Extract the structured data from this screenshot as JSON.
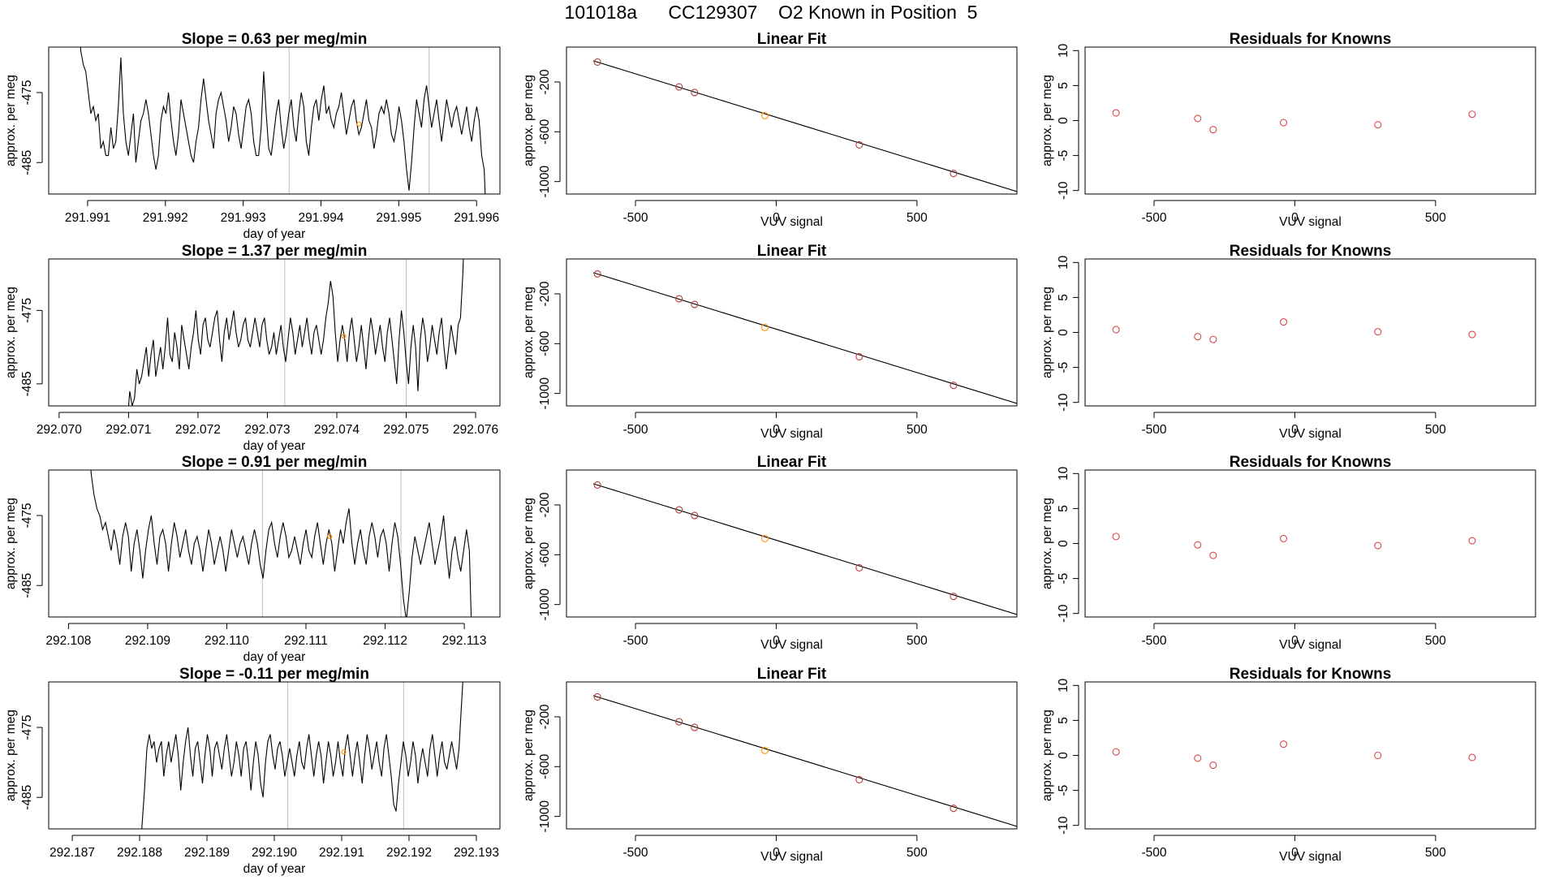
{
  "figure": {
    "title": "101018a      CC129307    O2 Known in Position  5"
  },
  "chart_data": [
    {
      "type": "line",
      "row": 1,
      "slope": "0.63",
      "title_prefix": "Slope = ",
      "title_suffix": " per meg/min",
      "xlabel": "day of year",
      "ylabel": "approx. per meg",
      "xlim": [
        291.9905,
        291.9963
      ],
      "ylim": [
        -489.5,
        -468.5
      ],
      "xticks": [
        "291.991",
        "291.992",
        "291.993",
        "291.994",
        "291.995",
        "291.996"
      ],
      "yticks": [
        "-475",
        "-485"
      ],
      "vlines": [
        291.99359,
        291.99539
      ],
      "series_x": [
        291.99088,
        291.99613
      ],
      "series_y": [
        -462,
        -469,
        -471,
        -472,
        -475,
        -478,
        -477,
        -479,
        -478,
        -483,
        -482,
        -484,
        -484,
        -480,
        -483,
        -482,
        -477,
        -470,
        -478,
        -482,
        -484,
        -481,
        -478,
        -485,
        -482,
        -479,
        -478,
        -476,
        -478,
        -481,
        -484,
        -486,
        -484,
        -479,
        -477,
        -478,
        -475,
        -479,
        -482,
        -484,
        -481,
        -476,
        -478,
        -480,
        -482,
        -484,
        -485,
        -482,
        -480,
        -476,
        -473,
        -476,
        -479,
        -481,
        -483,
        -478,
        -476,
        -475,
        -477,
        -479,
        -482,
        -480,
        -477,
        -478,
        -481,
        -483,
        -480,
        -477,
        -476,
        -478,
        -482,
        -484,
        -484,
        -480,
        -472,
        -478,
        -483,
        -484,
        -481,
        -478,
        -476,
        -480,
        -483,
        -481,
        -478,
        -476,
        -480,
        -482,
        -478,
        -475,
        -477,
        -482,
        -484,
        -480,
        -477,
        -476,
        -479,
        -476,
        -474,
        -478,
        -477,
        -479,
        -480,
        -478,
        -477,
        -475,
        -478,
        -481,
        -479,
        -477,
        -476,
        -479,
        -481,
        -480,
        -478,
        -476,
        -479,
        -480,
        -483,
        -481,
        -478,
        -477,
        -478,
        -476,
        -478,
        -481,
        -482,
        -480,
        -477,
        -479,
        -482,
        -486,
        -489,
        -485,
        -480,
        -476,
        -478,
        -480,
        -476,
        -474,
        -477,
        -480,
        -478,
        -476,
        -479,
        -482,
        -479,
        -476,
        -478,
        -480,
        -478,
        -477,
        -479,
        -481,
        -479,
        -477,
        -480,
        -482,
        -479,
        -477,
        -479,
        -484,
        -486,
        -495
      ],
      "knowns": [
        {
          "x": 291.99449,
          "y": -479.5
        }
      ]
    },
    {
      "type": "line",
      "row": 2,
      "slope": "1.37",
      "title_prefix": "Slope = ",
      "title_suffix": " per meg/min",
      "xlabel": "day of year",
      "ylabel": "approx. per meg",
      "xlim": [
        292.06985,
        292.07635
      ],
      "ylim": [
        -488,
        -468
      ],
      "xticks": [
        "292.070",
        "292.071",
        "292.072",
        "292.073",
        "292.074",
        "292.075",
        "292.076"
      ],
      "yticks": [
        "-475",
        "-485"
      ],
      "vlines": [
        292.07325,
        292.075
      ],
      "series_x": [
        292.07095,
        292.07585
      ],
      "series_y": [
        -495,
        -490,
        -486,
        -488,
        -487,
        -483,
        -485,
        -484,
        -482,
        -480,
        -484,
        -481,
        -479,
        -484,
        -482,
        -480,
        -483,
        -480,
        -476,
        -481,
        -482,
        -478,
        -480,
        -483,
        -477,
        -479,
        -481,
        -483,
        -480,
        -478,
        -475,
        -479,
        -481,
        -477,
        -476,
        -479,
        -480,
        -478,
        -476,
        -475,
        -479,
        -482,
        -478,
        -476,
        -479,
        -477,
        -475,
        -478,
        -480,
        -479,
        -477,
        -476,
        -479,
        -480,
        -478,
        -476,
        -478,
        -480,
        -477,
        -476,
        -479,
        -481,
        -480,
        -478,
        -481,
        -479,
        -477,
        -480,
        -482,
        -479,
        -476,
        -478,
        -481,
        -479,
        -477,
        -480,
        -478,
        -476,
        -479,
        -481,
        -478,
        -477,
        -479,
        -481,
        -479,
        -476,
        -474,
        -471,
        -473,
        -478,
        -482,
        -479,
        -477,
        -479,
        -482,
        -478,
        -476,
        -479,
        -482,
        -480,
        -477,
        -480,
        -483,
        -479,
        -476,
        -478,
        -481,
        -479,
        -477,
        -480,
        -482,
        -478,
        -476,
        -479,
        -482,
        -485,
        -479,
        -475,
        -478,
        -482,
        -485,
        -480,
        -477,
        -480,
        -486,
        -479,
        -476,
        -478,
        -482,
        -480,
        -477,
        -479,
        -481,
        -478,
        -476,
        -480,
        -483,
        -480,
        -477,
        -479,
        -481,
        -477,
        -476,
        -470,
        -461
      ],
      "knowns": [
        {
          "x": 292.0741,
          "y": -478.5
        }
      ]
    },
    {
      "type": "line",
      "row": 3,
      "slope": "0.91",
      "title_prefix": "Slope = ",
      "title_suffix": " per meg/min",
      "xlabel": "day of year",
      "ylabel": "approx. per meg",
      "xlim": [
        292.10775,
        292.11345
      ],
      "ylim": [
        -489.5,
        -468.5
      ],
      "xticks": [
        "292.108",
        "292.109",
        "292.110",
        "292.111",
        "292.112",
        "292.113"
      ],
      "yticks": [
        "-475",
        "-485"
      ],
      "vlines": [
        292.11045,
        292.1122
      ],
      "series_x": [
        292.10825,
        292.1131
      ],
      "series_y": [
        -462,
        -469,
        -472,
        -474,
        -475,
        -477,
        -476,
        -478,
        -480,
        -477,
        -479,
        -482,
        -478,
        -476,
        -478,
        -483,
        -479,
        -477,
        -480,
        -484,
        -480,
        -477,
        -475,
        -479,
        -482,
        -478,
        -477,
        -479,
        -483,
        -479,
        -476,
        -478,
        -481,
        -479,
        -477,
        -480,
        -482,
        -479,
        -478,
        -480,
        -483,
        -480,
        -477,
        -479,
        -482,
        -480,
        -478,
        -480,
        -483,
        -480,
        -477,
        -479,
        -481,
        -479,
        -478,
        -480,
        -482,
        -479,
        -477,
        -479,
        -482,
        -484,
        -480,
        -477,
        -476,
        -479,
        -481,
        -478,
        -476,
        -478,
        -481,
        -480,
        -478,
        -480,
        -482,
        -479,
        -477,
        -480,
        -481,
        -478,
        -476,
        -479,
        -482,
        -479,
        -477,
        -479,
        -483,
        -480,
        -477,
        -479,
        -476,
        -474,
        -479,
        -482,
        -479,
        -477,
        -480,
        -482,
        -478,
        -476,
        -478,
        -481,
        -478,
        -477,
        -479,
        -483,
        -479,
        -476,
        -478,
        -482,
        -487,
        -490,
        -486,
        -481,
        -478,
        -480,
        -482,
        -480,
        -478,
        -476,
        -479,
        -482,
        -480,
        -478,
        -475,
        -480,
        -484,
        -480,
        -478,
        -481,
        -483,
        -480,
        -477,
        -480,
        -495
      ],
      "knowns": [
        {
          "x": 292.1113,
          "y": -478.0
        }
      ]
    },
    {
      "type": "line",
      "row": 4,
      "slope": "-0.11",
      "title_prefix": "Slope = ",
      "title_suffix": " per meg/min",
      "xlabel": "day of year",
      "ylabel": "approx. per meg",
      "xlim": [
        292.18665,
        292.19335
      ],
      "ylim": [
        -489.5,
        -468.5
      ],
      "xticks": [
        "292.187",
        "292.188",
        "292.189",
        "292.190",
        "292.191",
        "292.192",
        "292.193"
      ],
      "yticks": [
        "-475",
        "-485"
      ],
      "vlines": [
        292.1902,
        292.19192
      ],
      "series_x": [
        292.188,
        292.19285
      ],
      "series_y": [
        -495,
        -489,
        -484,
        -478,
        -476,
        -478,
        -477,
        -480,
        -478,
        -477,
        -482,
        -479,
        -477,
        -480,
        -478,
        -476,
        -479,
        -484,
        -480,
        -477,
        -475,
        -479,
        -482,
        -478,
        -477,
        -480,
        -483,
        -479,
        -476,
        -478,
        -482,
        -478,
        -477,
        -479,
        -481,
        -478,
        -476,
        -479,
        -482,
        -480,
        -477,
        -479,
        -482,
        -478,
        -477,
        -480,
        -484,
        -480,
        -477,
        -479,
        -483,
        -485,
        -480,
        -477,
        -476,
        -479,
        -481,
        -478,
        -477,
        -479,
        -482,
        -480,
        -478,
        -480,
        -482,
        -479,
        -477,
        -480,
        -481,
        -478,
        -476,
        -479,
        -482,
        -479,
        -477,
        -479,
        -483,
        -480,
        -477,
        -479,
        -482,
        -480,
        -477,
        -480,
        -482,
        -478,
        -476,
        -479,
        -482,
        -479,
        -477,
        -480,
        -483,
        -479,
        -476,
        -478,
        -481,
        -479,
        -477,
        -480,
        -482,
        -478,
        -476,
        -479,
        -482,
        -486,
        -487,
        -483,
        -480,
        -477,
        -479,
        -482,
        -480,
        -477,
        -479,
        -483,
        -480,
        -478,
        -480,
        -482,
        -478,
        -476,
        -479,
        -482,
        -479,
        -477,
        -480,
        -481,
        -479,
        -477,
        -479,
        -481,
        -478,
        -472,
        -466,
        -460
      ],
      "knowns": [
        {
          "x": 292.19103,
          "y": -478.5
        }
      ]
    },
    {
      "type": "scatter",
      "title": "Linear Fit",
      "line": true,
      "xlabel": "VUV signal",
      "ylabel": "approx. per meg",
      "xlim": [
        -745,
        855
      ],
      "ylim": [
        -1100,
        80
      ],
      "xticks": [
        -500,
        0,
        500
      ],
      "yticks": [
        -200,
        -600,
        -1000
      ],
      "line_endpoints": [
        [
          -650,
          -30
        ],
        [
          855,
          -1080
        ]
      ],
      "points": [
        [
          -635,
          -40
        ],
        [
          -345,
          -240
        ],
        [
          -290,
          -285
        ],
        [
          -40,
          -470
        ],
        [
          295,
          -705
        ],
        [
          630,
          -935
        ]
      ],
      "highlight_index": 3
    },
    {
      "type": "scatter",
      "title": "Residuals for Knowns",
      "xlabel": "VUV signal",
      "ylabel": "approx. per meg",
      "xlim": [
        -745,
        855
      ],
      "ylim": [
        -10.5,
        10.5
      ],
      "xticks": [
        -500,
        0,
        500
      ],
      "yticks": [
        10,
        5,
        0,
        -5,
        -10
      ],
      "residuals": [
        [
          [
            -635,
            1.1
          ],
          [
            -345,
            0.3
          ],
          [
            -290,
            -1.3
          ],
          [
            -40,
            -0.3
          ],
          [
            295,
            -0.6
          ],
          [
            630,
            0.9
          ]
        ],
        [
          [
            -635,
            0.4
          ],
          [
            -345,
            -0.6
          ],
          [
            -290,
            -1.0
          ],
          [
            -40,
            1.5
          ],
          [
            295,
            0.1
          ],
          [
            630,
            -0.3
          ]
        ],
        [
          [
            -635,
            1.0
          ],
          [
            -345,
            -0.2
          ],
          [
            -290,
            -1.7
          ],
          [
            -40,
            0.7
          ],
          [
            295,
            -0.3
          ],
          [
            630,
            0.4
          ]
        ],
        [
          [
            -635,
            0.5
          ],
          [
            -345,
            -0.4
          ],
          [
            -290,
            -1.4
          ],
          [
            -40,
            1.6
          ],
          [
            295,
            0.0
          ],
          [
            630,
            -0.3
          ]
        ]
      ]
    }
  ],
  "colors": {
    "line": "#000000",
    "vline": "#bdbdbd",
    "residual_point": "#d9474c",
    "fit_point": "#b33c3c",
    "highlight_point": "#ff9500"
  }
}
